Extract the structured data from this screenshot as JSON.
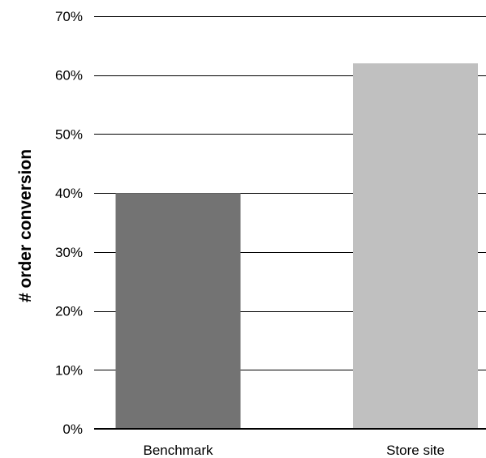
{
  "chart_data": {
    "type": "bar",
    "categories": [
      "Benchmark",
      "Store site"
    ],
    "values": [
      40,
      62
    ],
    "ylabel": "# order conversion",
    "xlabel": "",
    "ylim": [
      0,
      70
    ],
    "yticks": [
      0,
      10,
      20,
      30,
      40,
      50,
      60,
      70
    ],
    "ytick_labels": [
      "0%",
      "10%",
      "20%",
      "30%",
      "40%",
      "50%",
      "60%",
      "70%"
    ],
    "grid": true,
    "legend": "none",
    "colors": [
      "#737373",
      "#c0c0c0"
    ]
  }
}
